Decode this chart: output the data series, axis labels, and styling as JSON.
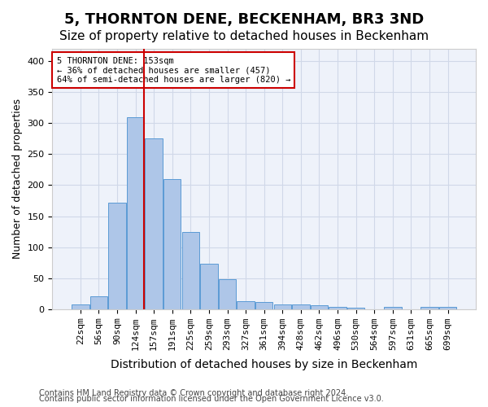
{
  "title": "5, THORNTON DENE, BECKENHAM, BR3 3ND",
  "subtitle": "Size of property relative to detached houses in Beckenham",
  "xlabel": "Distribution of detached houses by size in Beckenham",
  "ylabel": "Number of detached properties",
  "bin_labels": [
    "22sqm",
    "56sqm",
    "90sqm",
    "124sqm",
    "157sqm",
    "191sqm",
    "225sqm",
    "259sqm",
    "293sqm",
    "327sqm",
    "361sqm",
    "394sqm",
    "428sqm",
    "462sqm",
    "496sqm",
    "530sqm",
    "564sqm",
    "597sqm",
    "631sqm",
    "665sqm",
    "699sqm"
  ],
  "bar_heights": [
    7,
    20,
    172,
    310,
    275,
    210,
    125,
    73,
    48,
    13,
    12,
    8,
    8,
    6,
    4,
    2,
    0,
    3,
    0,
    4,
    4
  ],
  "bar_color": "#aec6e8",
  "bar_edge_color": "#5b9bd5",
  "grid_color": "#d0d8e8",
  "background_color": "#eef2fa",
  "vline_color": "#cc0000",
  "annotation_text": "5 THORNTON DENE: 153sqm\n← 36% of detached houses are smaller (457)\n64% of semi-detached houses are larger (820) →",
  "annotation_box_color": "#ffffff",
  "annotation_box_edge": "#cc0000",
  "ylim": [
    0,
    420
  ],
  "yticks": [
    0,
    50,
    100,
    150,
    200,
    250,
    300,
    350,
    400
  ],
  "footer1": "Contains HM Land Registry data © Crown copyright and database right 2024.",
  "footer2": "Contains public sector information licensed under the Open Government Licence v3.0.",
  "title_fontsize": 13,
  "subtitle_fontsize": 11,
  "axis_label_fontsize": 9,
  "tick_fontsize": 8,
  "footer_fontsize": 7
}
